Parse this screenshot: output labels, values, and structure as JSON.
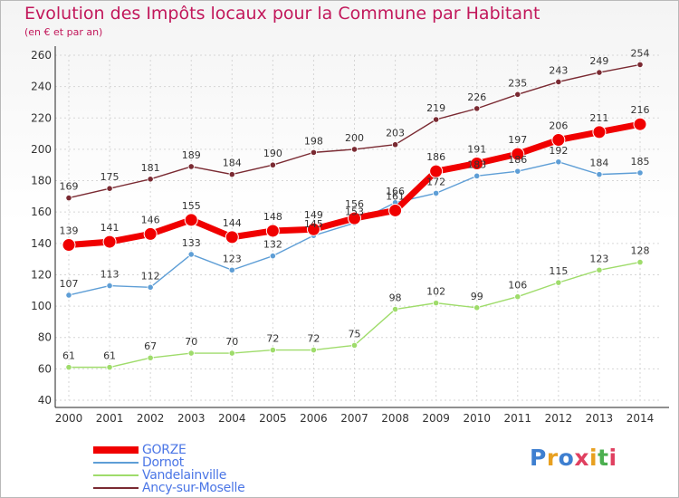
{
  "chart_data": {
    "type": "line",
    "title": "Evolution des Impôts locaux pour la Commune par Habitant",
    "subtitle": "(en € et par an)",
    "xlabel": "",
    "ylabel": "",
    "x": [
      2000,
      2001,
      2002,
      2003,
      2004,
      2005,
      2006,
      2007,
      2008,
      2009,
      2010,
      2011,
      2012,
      2013,
      2014
    ],
    "ylim": [
      40,
      260
    ],
    "yticks": [
      40,
      60,
      80,
      100,
      120,
      140,
      160,
      180,
      200,
      220,
      240,
      260
    ],
    "grid": true,
    "legend_position": "bottom-left",
    "series": [
      {
        "name": "Ancy-sur-Moselle",
        "color": "#7a2a32",
        "values": [
          169,
          175,
          181,
          189,
          184,
          190,
          198,
          200,
          203,
          219,
          226,
          235,
          243,
          249,
          254
        ]
      },
      {
        "name": "Dornot",
        "color": "#5e9ed6",
        "values": [
          107,
          113,
          112,
          133,
          123,
          132,
          145,
          153,
          166,
          172,
          183,
          186,
          192,
          184,
          185
        ]
      },
      {
        "name": "Vandelainville",
        "color": "#9fdc6b",
        "values": [
          61,
          61,
          67,
          70,
          70,
          72,
          72,
          75,
          98,
          102,
          99,
          106,
          115,
          123,
          128
        ]
      },
      {
        "name": "GORZE",
        "color": "#f00000",
        "values": [
          139,
          141,
          146,
          155,
          144,
          148,
          149,
          156,
          161,
          186,
          191,
          197,
          206,
          211,
          216
        ]
      }
    ]
  },
  "legend": {
    "items": [
      {
        "label": "GORZE",
        "color": "#f00000",
        "thickness": 8
      },
      {
        "label": "Dornot",
        "color": "#5e9ed6",
        "thickness": 2
      },
      {
        "label": "Vandelainville",
        "color": "#9fdc6b",
        "thickness": 2
      },
      {
        "label": "Ancy-sur-Moselle",
        "color": "#7a2a32",
        "thickness": 2
      }
    ]
  },
  "logo": {
    "letters": [
      {
        "char": "P",
        "color": "#3e7fd0"
      },
      {
        "char": "r",
        "color": "#e8a020"
      },
      {
        "char": "o",
        "color": "#3e7fd0"
      },
      {
        "char": "x",
        "color": "#e04060"
      },
      {
        "char": "i",
        "color": "#e8a020"
      },
      {
        "char": "t",
        "color": "#4caf50"
      },
      {
        "char": "i",
        "color": "#e04060"
      }
    ]
  }
}
